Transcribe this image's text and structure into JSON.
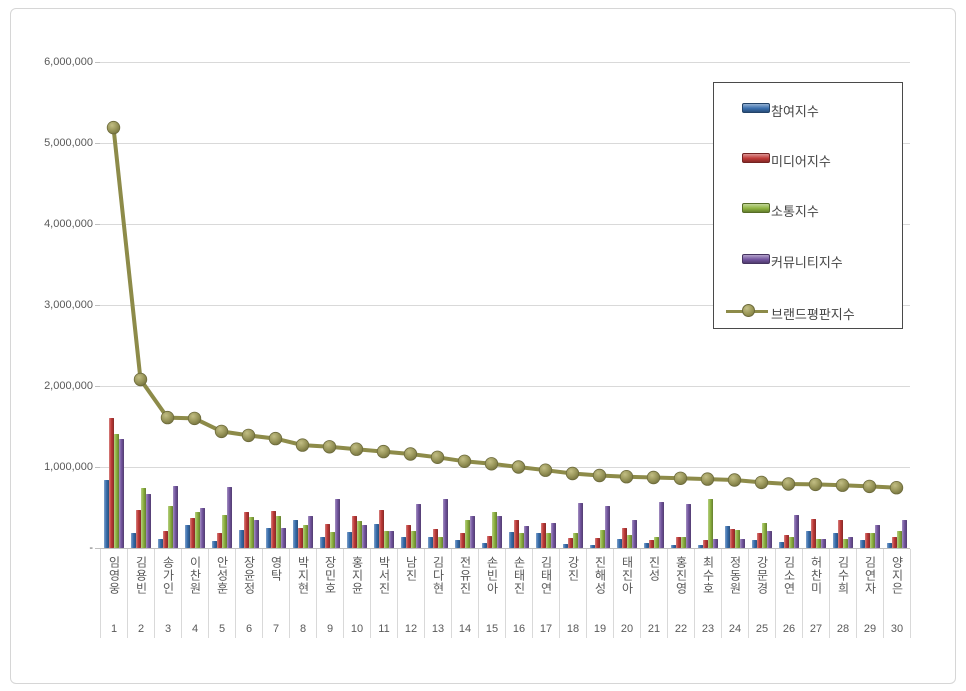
{
  "chart": {
    "y_axis": {
      "tick_labels": [
        "6,000,000",
        "5,000,000",
        "4,000,000",
        "3,000,000",
        "2,000,000",
        "1,000,000",
        "-"
      ],
      "tick_values": [
        6000000,
        5000000,
        4000000,
        3000000,
        2000000,
        1000000,
        0
      ]
    }
  },
  "legend": {
    "items": [
      {
        "label": "참여지수",
        "color": "#3a6fae",
        "type": "bar"
      },
      {
        "label": "미디어지수",
        "color": "#bf3a38",
        "type": "bar"
      },
      {
        "label": "소통지수",
        "color": "#8fb441",
        "type": "bar"
      },
      {
        "label": "커뮤니티지수",
        "color": "#7456a0",
        "type": "bar"
      },
      {
        "label": "브랜드평판지수",
        "color": "#8d8b49",
        "type": "line"
      }
    ]
  },
  "chart_data": {
    "type": "bar",
    "title": "",
    "xlabel": "",
    "ylabel": "",
    "ylim": [
      0,
      6000000
    ],
    "y_tick_step": 1000000,
    "grid": true,
    "legend_position": "upper right",
    "categories": [
      "임영웅",
      "김용빈",
      "송가인",
      "이찬원",
      "안성훈",
      "장윤정",
      "영탁",
      "박지현",
      "장민호",
      "홍지윤",
      "박서진",
      "남진",
      "김다현",
      "전유진",
      "손빈아",
      "손태진",
      "김태연",
      "강진",
      "진해성",
      "태진아",
      "진성",
      "홍진영",
      "최수호",
      "정동원",
      "강문경",
      "김소연",
      "허찬미",
      "김수희",
      "김연자",
      "양지은"
    ],
    "category_ranks": [
      "1",
      "2",
      "3",
      "4",
      "5",
      "6",
      "7",
      "8",
      "9",
      "10",
      "11",
      "12",
      "13",
      "14",
      "15",
      "16",
      "17",
      "18",
      "19",
      "20",
      "21",
      "22",
      "23",
      "24",
      "25",
      "26",
      "27",
      "28",
      "29",
      "30"
    ],
    "series": [
      {
        "name": "참여지수",
        "type": "bar",
        "color": "#3a6fae",
        "values": [
          840000,
          190000,
          110000,
          290000,
          90000,
          225000,
          250000,
          340000,
          140000,
          200000,
          300000,
          130000,
          130000,
          100000,
          65000,
          200000,
          180000,
          50000,
          40000,
          115000,
          60000,
          35000,
          40000,
          270000,
          100000,
          80000,
          210000,
          190000,
          100000,
          60000
        ]
      },
      {
        "name": "미디어지수",
        "type": "bar",
        "color": "#bf3a38",
        "values": [
          1600000,
          475000,
          210000,
          370000,
          190000,
          450000,
          460000,
          250000,
          300000,
          400000,
          470000,
          280000,
          240000,
          190000,
          145000,
          345000,
          310000,
          120000,
          120000,
          250000,
          100000,
          130000,
          100000,
          240000,
          190000,
          160000,
          360000,
          340000,
          190000,
          135000
        ]
      },
      {
        "name": "소통지수",
        "type": "bar",
        "color": "#8fb441",
        "values": [
          1410000,
          740000,
          520000,
          440000,
          410000,
          380000,
          390000,
          290000,
          200000,
          330000,
          210000,
          210000,
          130000,
          350000,
          445000,
          180000,
          190000,
          190000,
          220000,
          160000,
          140000,
          135000,
          600000,
          220000,
          310000,
          140000,
          105000,
          110000,
          190000,
          210000
        ]
      },
      {
        "name": "커뮤니티지수",
        "type": "bar",
        "color": "#7456a0",
        "values": [
          1340000,
          670000,
          770000,
          500000,
          750000,
          340000,
          250000,
          390000,
          610000,
          290000,
          210000,
          540000,
          610000,
          400000,
          390000,
          275000,
          310000,
          560000,
          520000,
          340000,
          570000,
          540000,
          110000,
          110000,
          210000,
          410000,
          110000,
          135000,
          280000,
          340000
        ]
      },
      {
        "name": "브랜드평판지수",
        "type": "line",
        "color": "#8d8b49",
        "values": [
          5190000,
          2080000,
          1610000,
          1600000,
          1440000,
          1390000,
          1350000,
          1270000,
          1250000,
          1220000,
          1190000,
          1160000,
          1120000,
          1070000,
          1040000,
          1000000,
          960000,
          920000,
          895000,
          880000,
          870000,
          860000,
          850000,
          840000,
          810000,
          790000,
          785000,
          775000,
          760000,
          745000
        ]
      }
    ]
  }
}
